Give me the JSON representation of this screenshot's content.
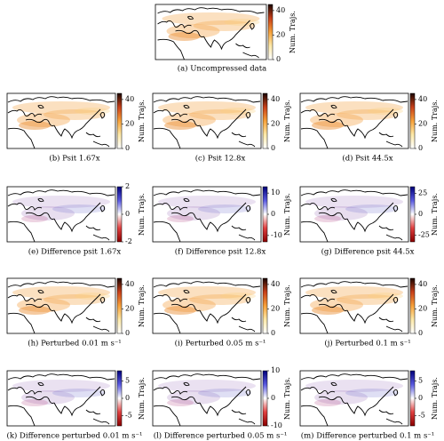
{
  "figure": {
    "panels": [
      {
        "caption": "(a) Uncompressed data",
        "colorbar": {
          "label": "Num. Trajs.",
          "lim": [
            0,
            45
          ],
          "ticks": [
            0,
            20,
            40
          ],
          "colormap": "sequential"
        }
      },
      {
        "caption": "(b) Psit 1.67x",
        "colorbar": {
          "label": "Num. Trajs.",
          "lim": [
            0,
            45
          ],
          "ticks": [
            0,
            20,
            40
          ],
          "colormap": "sequential"
        }
      },
      {
        "caption": "(c) Psit 12.8x",
        "colorbar": {
          "label": "Num. Trajs.",
          "lim": [
            0,
            45
          ],
          "ticks": [
            0,
            20,
            40
          ],
          "colormap": "sequential"
        }
      },
      {
        "caption": "(d) Psit 44.5x",
        "colorbar": {
          "label": "Num. Trajs.",
          "lim": [
            0,
            45
          ],
          "ticks": [
            0,
            20,
            40
          ],
          "colormap": "sequential"
        }
      },
      {
        "caption": "(e) Difference psit 1.67x",
        "colorbar": {
          "label": "Num. Trajs.",
          "lim": [
            -2,
            2
          ],
          "ticks": [
            -2,
            0,
            2
          ],
          "colormap": "diverging"
        }
      },
      {
        "caption": "(f) Difference psit 12.8x",
        "colorbar": {
          "label": "Num. Trajs.",
          "lim": [
            -13,
            13
          ],
          "ticks": [
            -10,
            0,
            10
          ],
          "colormap": "diverging"
        }
      },
      {
        "caption": "(g) Difference psit 44.5x",
        "colorbar": {
          "label": "Num. Trajs.",
          "lim": [
            -33,
            33
          ],
          "ticks": [
            -25,
            0,
            25
          ],
          "colormap": "diverging"
        }
      },
      {
        "caption": "(h) Perturbed 0.01 m s⁻¹",
        "colorbar": {
          "label": "Num. Trajs.",
          "lim": [
            0,
            45
          ],
          "ticks": [
            0,
            20,
            40
          ],
          "colormap": "sequential"
        }
      },
      {
        "caption": "(i) Perturbed 0.05 m s⁻¹",
        "colorbar": {
          "label": "Num. Trajs.",
          "lim": [
            0,
            45
          ],
          "ticks": [
            0,
            20,
            40
          ],
          "colormap": "sequential"
        }
      },
      {
        "caption": "(j) Perturbed 0.1 m s⁻¹",
        "colorbar": {
          "label": "Num. Trajs.",
          "lim": [
            0,
            45
          ],
          "ticks": [
            0,
            20,
            40
          ],
          "colormap": "sequential"
        }
      },
      {
        "caption": "(k) Difference perturbed 0.01 m s⁻¹",
        "colorbar": {
          "label": "Num. Trajs.",
          "lim": [
            -8,
            8
          ],
          "ticks": [
            -5,
            0,
            5
          ],
          "colormap": "diverging"
        }
      },
      {
        "caption": "(l) Difference perturbed 0.05 m s⁻¹",
        "colorbar": {
          "label": "Num. Trajs.",
          "lim": [
            -10,
            10
          ],
          "ticks": [
            -10,
            0,
            10
          ],
          "colormap": "diverging"
        }
      },
      {
        "caption": "(m) Difference perturbed 0.1 m s⁻¹",
        "colorbar": {
          "label": "Num. Trajs.",
          "lim": [
            -8,
            8
          ],
          "ticks": [
            -5,
            0,
            5
          ],
          "colormap": "diverging"
        }
      }
    ]
  }
}
